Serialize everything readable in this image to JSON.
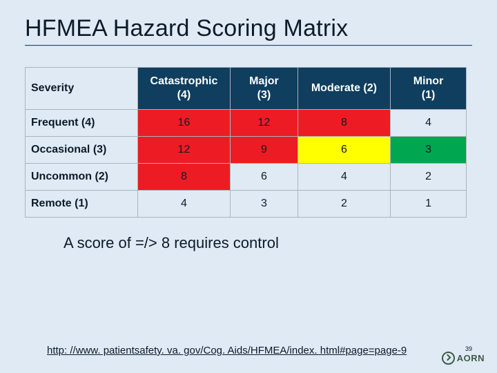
{
  "title": "HFMEA Hazard Scoring Matrix",
  "table": {
    "type": "table",
    "corner_label": "Severity",
    "header_bg": "#0f3e5e",
    "header_fg": "#ffffff",
    "border_color": "#aab3bb",
    "cell_colors": {
      "red": "#ed1c24",
      "yellow": "#ffff00",
      "green": "#00a650",
      "plain": "#dfeaf4"
    },
    "font_size_cells": 16,
    "columns": [
      {
        "label_line1": "Catastrophic",
        "label_line2": "(4)"
      },
      {
        "label_line1": "Major",
        "label_line2": "(3)"
      },
      {
        "label_line1": "Moderate (2)",
        "label_line2": ""
      },
      {
        "label_line1": "Minor",
        "label_line2": "(1)"
      }
    ],
    "rows": [
      {
        "label": "Frequent (4)",
        "cells": [
          {
            "v": "16",
            "c": "red"
          },
          {
            "v": "12",
            "c": "red"
          },
          {
            "v": "8",
            "c": "red"
          },
          {
            "v": "4",
            "c": "plain"
          }
        ]
      },
      {
        "label": "Occasional (3)",
        "cells": [
          {
            "v": "12",
            "c": "red"
          },
          {
            "v": "9",
            "c": "red"
          },
          {
            "v": "6",
            "c": "yellow"
          },
          {
            "v": "3",
            "c": "green"
          }
        ]
      },
      {
        "label": "Uncommon (2)",
        "cells": [
          {
            "v": "8",
            "c": "red"
          },
          {
            "v": "6",
            "c": "plain"
          },
          {
            "v": "4",
            "c": "plain"
          },
          {
            "v": "2",
            "c": "plain"
          }
        ]
      },
      {
        "label": "Remote (1)",
        "cells": [
          {
            "v": "4",
            "c": "plain"
          },
          {
            "v": "3",
            "c": "plain"
          },
          {
            "v": "2",
            "c": "plain"
          },
          {
            "v": "1",
            "c": "plain"
          }
        ]
      }
    ]
  },
  "note": "A score of =/> 8 requires control",
  "source_link": "http: //www. patientsafety. va. gov/Cog. Aids/HFMEA/index. html#page=page-9",
  "logo_text": "AORN",
  "page_number": "39",
  "background_color": "#dfeaf4",
  "title_fontsize": 34,
  "note_fontsize": 22
}
